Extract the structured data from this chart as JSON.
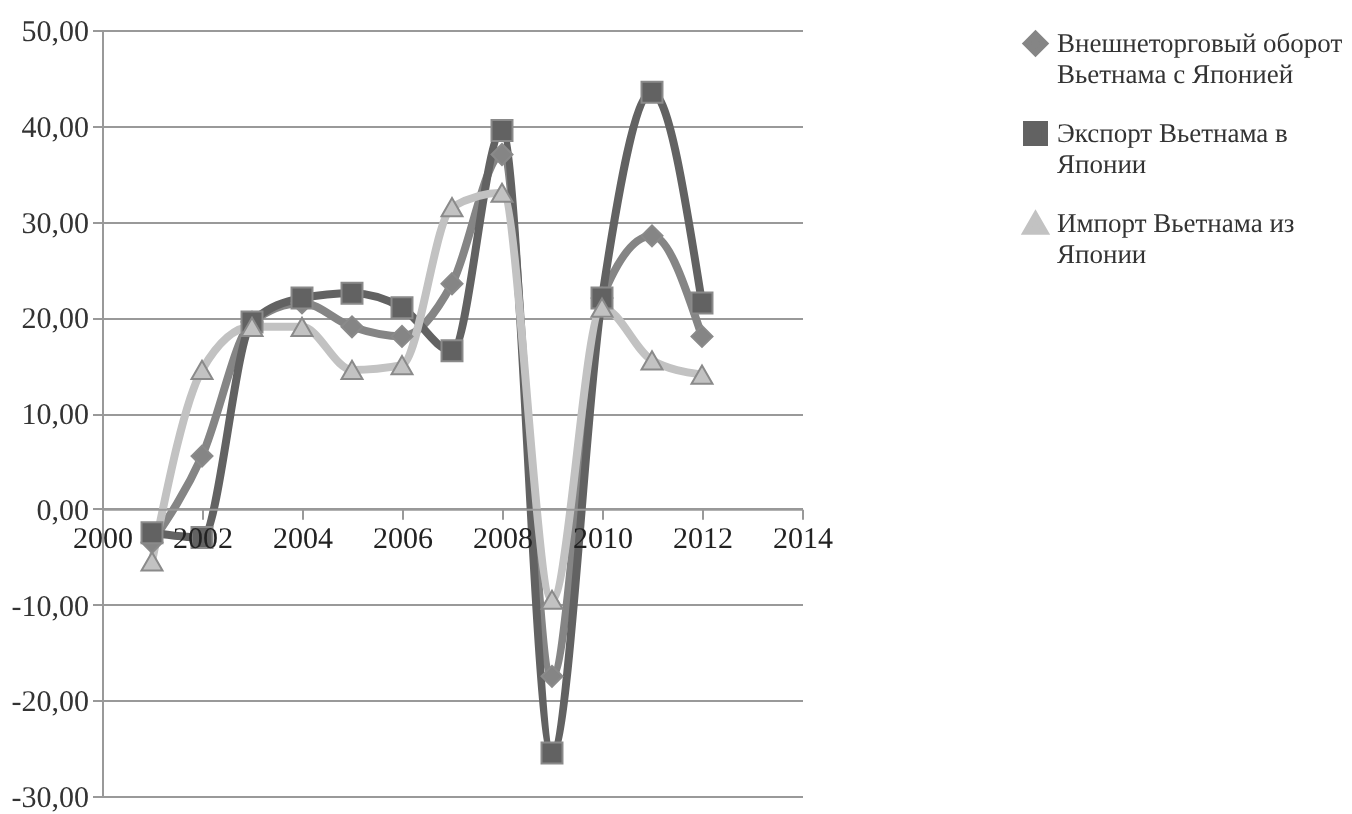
{
  "chart_data": {
    "type": "line",
    "x": [
      2001,
      2002,
      2003,
      2004,
      2005,
      2006,
      2007,
      2008,
      2009,
      2010,
      2011,
      2012
    ],
    "series": [
      {
        "name": "Внешнеторговый оборот Вьетнама с Японией",
        "color": "#858585",
        "marker": "diamond",
        "values": [
          -3.5,
          5.5,
          19.5,
          21.5,
          19,
          18,
          23.5,
          37,
          -17.5,
          22,
          28.5,
          18
        ]
      },
      {
        "name": "Экспорт Вьетнама в Японии",
        "color": "#626262",
        "marker": "square",
        "values": [
          -2.5,
          -3,
          19.5,
          22,
          22.5,
          21,
          16.5,
          39.5,
          -25.5,
          22,
          43.5,
          21.5
        ]
      },
      {
        "name": "Импорт Вьетнама из Японии",
        "color": "#c2c2c2",
        "marker": "triangle",
        "values": [
          -5.5,
          14.5,
          19,
          19,
          14.5,
          15,
          31.5,
          33,
          -9.5,
          21,
          15.5,
          14
        ]
      }
    ],
    "xlim": [
      2000,
      2014
    ],
    "xticks": [
      2000,
      2002,
      2004,
      2006,
      2008,
      2010,
      2012,
      2014
    ],
    "ylim": [
      -30,
      50
    ],
    "yticks": [
      {
        "value": -30,
        "label": "-30,00"
      },
      {
        "value": -20,
        "label": "-20,00"
      },
      {
        "value": -10,
        "label": "-10,00"
      },
      {
        "value": 0,
        "label": "0,00"
      },
      {
        "value": 10,
        "label": "10,00"
      },
      {
        "value": 20,
        "label": "20,00"
      },
      {
        "value": 30,
        "label": "30,00"
      },
      {
        "value": 40,
        "label": "40,00"
      },
      {
        "value": 50,
        "label": "50,00"
      }
    ],
    "grid": "y",
    "legend": "right",
    "line_style": "solid"
  }
}
